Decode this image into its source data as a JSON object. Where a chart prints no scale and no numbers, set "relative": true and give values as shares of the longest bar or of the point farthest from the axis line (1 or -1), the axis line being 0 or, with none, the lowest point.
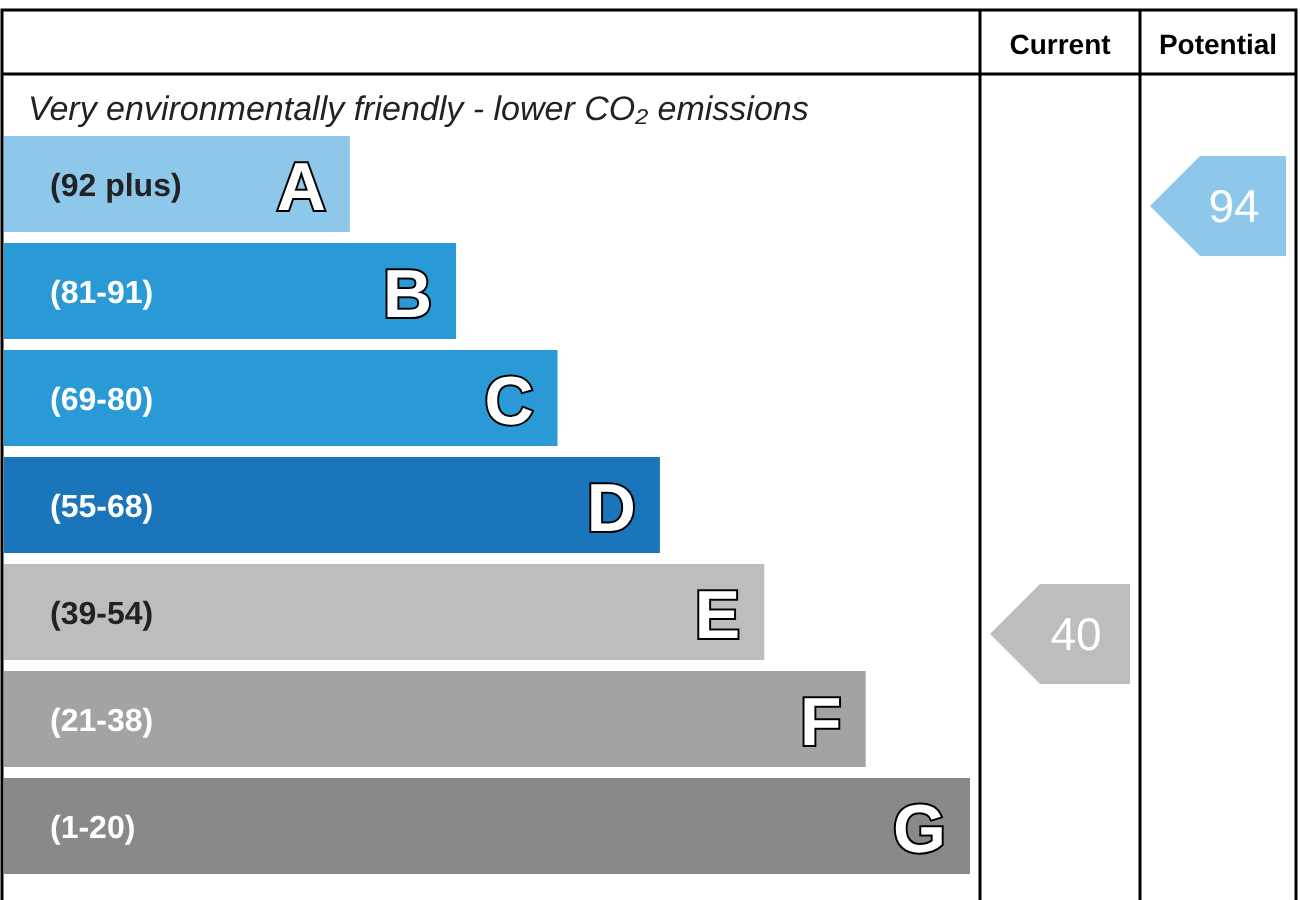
{
  "chart_data": {
    "type": "bar",
    "orientation": "horizontal",
    "relative": true,
    "title": "Very environmentally friendly - lower CO₂ emissions",
    "categories": [
      "(92 plus)",
      "(81-91)",
      "(69-80)",
      "(55-68)",
      "(39-54)",
      "(21-38)",
      "(1-20)"
    ],
    "values": [
      0.358,
      0.468,
      0.573,
      0.679,
      0.787,
      0.892,
      1
    ],
    "colors": [
      "#8dc8ea",
      "#2a9ad6",
      "#2a9ad6",
      "#1b75bb",
      "#bdbdbd",
      "#a3a3a3",
      "#898989"
    ],
    "annotations": [
      "Current",
      "Potential",
      "40",
      "94",
      {
        "text": "A",
        "y": "(92 plus)"
      },
      {
        "text": "B",
        "y": "(81-91)"
      },
      {
        "text": "C",
        "y": "(69-80)"
      },
      {
        "text": "D",
        "y": "(55-68)"
      },
      {
        "text": "E",
        "y": "(39-54)"
      },
      {
        "text": "F",
        "y": "(21-38)"
      },
      {
        "text": "G",
        "y": "(1-20)"
      }
    ]
  }
}
